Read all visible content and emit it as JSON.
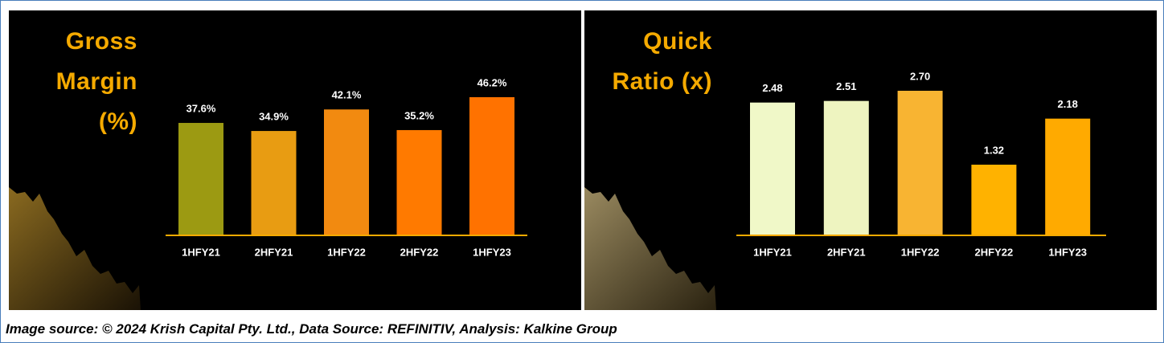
{
  "caption": "Image source: © 2024 Krish Capital Pty. Ltd., Data Source: REFINITIV, Analysis: Kalkine Group",
  "chart_data": [
    {
      "type": "bar",
      "title": "Gross Margin (%)",
      "categories": [
        "1HFY21",
        "2HFY21",
        "1HFY22",
        "2HFY22",
        "1HFY23"
      ],
      "values": [
        37.6,
        34.9,
        42.1,
        35.2,
        46.2
      ],
      "value_labels": [
        "37.6%",
        "34.9%",
        "42.1%",
        "35.2%",
        "46.2%"
      ],
      "colors": [
        "#9c9a12",
        "#e89c12",
        "#f28a10",
        "#ff7a00",
        "#ff7200"
      ]
    },
    {
      "type": "bar",
      "title": "Quick Ratio (x)",
      "categories": [
        "1HFY21",
        "2HFY21",
        "1HFY22",
        "2HFY22",
        "1HFY23"
      ],
      "values": [
        2.48,
        2.51,
        2.7,
        1.32,
        2.18
      ],
      "value_labels": [
        "2.48",
        "2.51",
        "2.70",
        "1.32",
        "2.18"
      ],
      "colors": [
        "#f0f8c8",
        "#eef4c0",
        "#f8b432",
        "#ffb200",
        "#ffaa00"
      ]
    }
  ]
}
